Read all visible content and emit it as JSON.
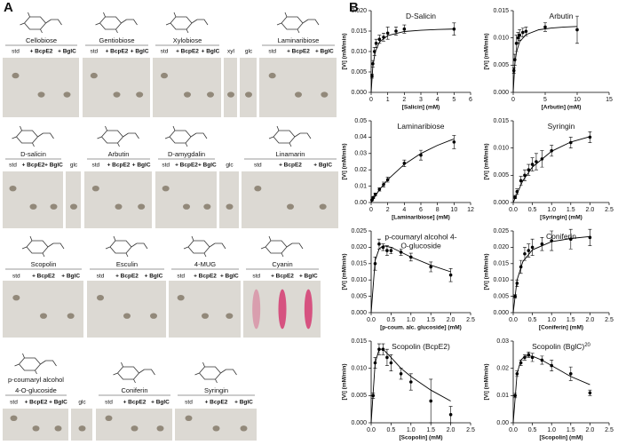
{
  "panels": [
    "A",
    "B"
  ],
  "panel_a": {
    "rows": [
      [
        {
          "name": "Cellobiose",
          "lanes": [
            "std",
            "+ BcpE2",
            "+ BglC"
          ]
        },
        {
          "name": "Gentiobiose",
          "lanes": [
            "std",
            "+ BcpE2",
            "+ BglC"
          ]
        },
        {
          "name": "Xylobiose",
          "lanes": [
            "std",
            "+ BcpE2",
            "+ BglC"
          ]
        },
        {
          "lanes": [
            "xyl"
          ]
        },
        {
          "lanes": [
            "glc"
          ]
        },
        {
          "name": "Laminaribiose",
          "lanes": [
            "std",
            "+ BcpE2",
            "+ BglC"
          ]
        }
      ],
      [
        {
          "name": "D-salicin",
          "lanes": [
            "std",
            "+ BcpE2",
            "+ BglC"
          ]
        },
        {
          "lanes": [
            "glc"
          ]
        },
        {
          "name": "Arbutin",
          "lanes": [
            "std",
            "+ BcpE2",
            "+ BglC"
          ]
        },
        {
          "name": "D-amygdalin",
          "lanes": [
            "std",
            "+ BcpE2",
            "+ BglC"
          ]
        },
        {
          "lanes": [
            "glc"
          ]
        },
        {
          "name": "Linamarin",
          "lanes": [
            "std",
            "+ BcpE2",
            "+ BglC"
          ]
        }
      ],
      [
        {
          "name": "Scopolin",
          "lanes": [
            "std",
            "+ BcpE2",
            "+ BglC"
          ]
        },
        {
          "name": "Esculin",
          "lanes": [
            "std",
            "+ BcpE2",
            "+ BglC"
          ]
        },
        {
          "name": "4-MUG",
          "lanes": [
            "std",
            "+ BcpE2",
            "+ BglC"
          ]
        },
        {
          "name": "Cyanin",
          "lanes": [
            "std",
            "+ BcpE2",
            "+ BglC"
          ]
        }
      ],
      [
        {
          "name": [
            "p-coumaryl alcohol",
            "4-O-glucoside"
          ],
          "lanes": [
            "std",
            "+ BcpE2",
            "+ BglC"
          ]
        },
        {
          "lanes": [
            "glc"
          ]
        },
        {
          "name": "Coniferin",
          "lanes": [
            "std",
            "+ BcpE2",
            "+ BglC"
          ]
        },
        {
          "name": "Syringin",
          "lanes": [
            "std",
            "+ BcpE2",
            "+ BglC"
          ]
        }
      ]
    ]
  },
  "chart_data": [
    {
      "type": "scatter",
      "title": "D-Salicin",
      "xlabel": "[Salicin] (mM)",
      "ylabel": "[Vi] (mM/min)",
      "xlim": [
        0,
        6
      ],
      "xticks": [
        0,
        1,
        2,
        3,
        4,
        5,
        6
      ],
      "ylim": [
        0,
        0.02
      ],
      "yticks": [
        {
          "value": 0,
          "label": "0.000"
        },
        0.005,
        {
          "value": 0.01,
          "label": "0.010"
        },
        0.015,
        {
          "value": 0.02,
          "label": "0.020"
        }
      ],
      "x": [
        0.05,
        0.1,
        0.2,
        0.3,
        0.5,
        0.75,
        1,
        1.5,
        2,
        5
      ],
      "values": [
        0.004,
        0.007,
        0.01,
        0.012,
        0.013,
        0.0135,
        0.0145,
        0.015,
        0.0155,
        0.0155
      ],
      "errors": [
        0.0005,
        0.0008,
        0.001,
        0.001,
        0.001,
        0.001,
        0.0015,
        0.001,
        0.001,
        0.0015
      ],
      "fit": {
        "x": [
          0,
          0.1,
          0.25,
          0.5,
          1,
          2,
          3,
          4,
          5
        ],
        "values": [
          0,
          0.0064,
          0.01,
          0.0123,
          0.0139,
          0.0149,
          0.0152,
          0.0154,
          0.0155
        ]
      }
    },
    {
      "type": "scatter",
      "title": "Arbutin",
      "xlabel": "[Arbutin] (mM)",
      "ylabel": "[Vi] (mM/min)",
      "xlim": [
        0,
        15
      ],
      "xticks": [
        0,
        5,
        10,
        15
      ],
      "ylim": [
        0,
        0.015
      ],
      "yticks": [
        {
          "value": 0,
          "label": "0.000"
        },
        0.005,
        {
          "value": 0.01,
          "label": "0.010"
        },
        0.015
      ],
      "x": [
        0.1,
        0.25,
        0.5,
        0.75,
        1,
        1.5,
        2,
        5,
        10
      ],
      "values": [
        0.004,
        0.006,
        0.009,
        0.01,
        0.0105,
        0.011,
        0.0112,
        0.012,
        0.0115
      ],
      "errors": [
        0.0005,
        0.001,
        0.0015,
        0.001,
        0.001,
        0.0008,
        0.0008,
        0.0008,
        0.0025
      ],
      "fit": {
        "x": [
          0,
          0.25,
          0.5,
          1,
          2,
          4,
          6,
          8,
          10
        ],
        "values": [
          0,
          0.0052,
          0.0074,
          0.0093,
          0.0106,
          0.0115,
          0.0118,
          0.012,
          0.0121
        ]
      }
    },
    {
      "type": "scatter",
      "title": "Laminaribiose",
      "xlabel": "[Laminaribiose] (mM)",
      "ylabel": "[Vi] (mM/min)",
      "xlim": [
        0,
        12
      ],
      "xticks": [
        0,
        2,
        4,
        6,
        8,
        10,
        12
      ],
      "ylim": [
        0,
        0.05
      ],
      "yticks": [
        {
          "value": 0,
          "label": "0.00"
        },
        0.01,
        0.02,
        0.03,
        0.04,
        0.05
      ],
      "x": [
        0.1,
        0.25,
        0.5,
        1,
        1.5,
        2,
        4,
        6,
        10
      ],
      "values": [
        0.0015,
        0.003,
        0.005,
        0.008,
        0.011,
        0.014,
        0.024,
        0.029,
        0.037
      ],
      "errors": [
        0.0003,
        0.0005,
        0.0008,
        0.001,
        0.0015,
        0.0015,
        0.002,
        0.003,
        0.004
      ],
      "fit": {
        "x": [
          0,
          1,
          2,
          4,
          6,
          8,
          10
        ],
        "values": [
          0,
          0.0078,
          0.014,
          0.0233,
          0.03,
          0.035,
          0.0389
        ]
      }
    },
    {
      "type": "scatter",
      "title": "Syringin",
      "xlabel": "[Syringin] (mM)",
      "ylabel": "[Vi] (mM/min)",
      "xlim": [
        0,
        2.5
      ],
      "xticks": [
        {
          "value": 0,
          "label": "0.0"
        },
        0.5,
        {
          "value": 1,
          "label": "1.0"
        },
        1.5,
        {
          "value": 2,
          "label": "2.0"
        },
        2.5
      ],
      "ylim": [
        0,
        0.015
      ],
      "yticks": [
        {
          "value": 0,
          "label": "0.000"
        },
        0.005,
        {
          "value": 0.01,
          "label": "0.010"
        },
        0.015
      ],
      "x": [
        0.05,
        0.1,
        0.2,
        0.3,
        0.4,
        0.5,
        0.6,
        0.75,
        1,
        1.5,
        2
      ],
      "values": [
        0.001,
        0.002,
        0.004,
        0.005,
        0.006,
        0.007,
        0.0075,
        0.008,
        0.0095,
        0.011,
        0.012
      ],
      "errors": [
        0.0003,
        0.0005,
        0.0008,
        0.001,
        0.001,
        0.0012,
        0.0015,
        0.0015,
        0.001,
        0.001,
        0.001
      ],
      "fit": {
        "x": [
          0,
          0.25,
          0.5,
          1,
          1.5,
          2
        ],
        "values": [
          0,
          0.004,
          0.0065,
          0.0094,
          0.0111,
          0.0121
        ]
      }
    },
    {
      "type": "scatter",
      "title": [
        "p-coumaryl alcohol 4-",
        "O-glucoside"
      ],
      "xlabel": "[p-coum. alc. glucoside] (mM)",
      "ylabel": "[Vi] (mM/min)",
      "xlim": [
        0,
        2.5
      ],
      "xticks": [
        {
          "value": 0,
          "label": "0.0"
        },
        0.5,
        {
          "value": 1,
          "label": "1.0"
        },
        1.5,
        {
          "value": 2,
          "label": "2.0"
        },
        2.5
      ],
      "ylim": [
        0,
        0.025
      ],
      "yticks": [
        {
          "value": 0,
          "label": "0.000"
        },
        0.005,
        {
          "value": 0.01,
          "label": "0.010"
        },
        0.015,
        {
          "value": 0.02,
          "label": "0.020"
        },
        0.025
      ],
      "x": [
        0.1,
        0.2,
        0.3,
        0.4,
        0.5,
        0.75,
        1,
        1.5,
        2
      ],
      "values": [
        0.015,
        0.021,
        0.02,
        0.019,
        0.019,
        0.0185,
        0.017,
        0.014,
        0.0115
      ],
      "errors": [
        0.002,
        0.0015,
        0.001,
        0.0015,
        0.001,
        0.001,
        0.0012,
        0.0015,
        0.002
      ],
      "fit": {
        "x": [
          0,
          0.1,
          0.2,
          0.3,
          0.5,
          0.75,
          1,
          1.5,
          2
        ],
        "values": [
          0,
          0.016,
          0.0195,
          0.0205,
          0.02,
          0.0185,
          0.017,
          0.0145,
          0.0125
        ]
      }
    },
    {
      "type": "scatter",
      "title": "Coniferin",
      "xlabel": "[Coniferin] (mM)",
      "ylabel": "[Vi] (mM/min)",
      "xlim": [
        0,
        2.5
      ],
      "xticks": [
        {
          "value": 0,
          "label": "0.0"
        },
        0.5,
        {
          "value": 1,
          "label": "1.0"
        },
        1.5,
        {
          "value": 2,
          "label": "2.0"
        },
        2.5
      ],
      "ylim": [
        0,
        0.025
      ],
      "yticks": [
        {
          "value": 0,
          "label": "0.000"
        },
        0.005,
        {
          "value": 0.01,
          "label": "0.010"
        },
        0.015,
        {
          "value": 0.02,
          "label": "0.020"
        },
        0.025
      ],
      "x": [
        0.05,
        0.1,
        0.2,
        0.3,
        0.4,
        0.5,
        0.75,
        1,
        1.5,
        2
      ],
      "values": [
        0.005,
        0.009,
        0.014,
        0.018,
        0.019,
        0.02,
        0.021,
        0.022,
        0.0225,
        0.023
      ],
      "errors": [
        0.0005,
        0.001,
        0.002,
        0.002,
        0.002,
        0.0025,
        0.002,
        0.003,
        0.003,
        0.0025
      ],
      "fit": {
        "x": [
          0,
          0.1,
          0.25,
          0.5,
          1,
          1.5,
          2
        ],
        "values": [
          0,
          0.01,
          0.0156,
          0.0192,
          0.0217,
          0.0227,
          0.0233
        ]
      }
    },
    {
      "type": "scatter",
      "title": "Scopolin (BcpE2)",
      "xlabel": "[Scopolin] (mM)",
      "ylabel": "[Vi] (mM/min)",
      "xlim": [
        0,
        2.5
      ],
      "xticks": [
        {
          "value": 0,
          "label": "0.0"
        },
        0.5,
        {
          "value": 1,
          "label": "1.0"
        },
        1.5,
        {
          "value": 2,
          "label": "2.0"
        },
        2.5
      ],
      "ylim": [
        0,
        0.015
      ],
      "yticks": [
        {
          "value": 0,
          "label": "0.000"
        },
        0.005,
        {
          "value": 0.01,
          "label": "0.010"
        },
        0.015
      ],
      "x": [
        0.05,
        0.1,
        0.2,
        0.3,
        0.4,
        0.5,
        0.75,
        1,
        1.5,
        2
      ],
      "values": [
        0.005,
        0.011,
        0.0135,
        0.0135,
        0.012,
        0.011,
        0.009,
        0.0075,
        0.004,
        0.0015
      ],
      "errors": [
        0.0005,
        0.001,
        0.001,
        0.001,
        0.0015,
        0.0015,
        0.001,
        0.0015,
        0.004,
        0.0015
      ],
      "fit": {
        "x": [
          0,
          0.1,
          0.2,
          0.3,
          0.5,
          0.75,
          1,
          1.5,
          2
        ],
        "values": [
          0,
          0.011,
          0.0135,
          0.0135,
          0.012,
          0.01,
          0.0085,
          0.006,
          0.004
        ]
      }
    },
    {
      "type": "scatter",
      "title": "Scopolin (BglC)",
      "title_note": "20",
      "xlabel": "[Scopolin] (mM)",
      "ylabel": "[Vi] (mM/min)",
      "xlim": [
        0,
        2.5
      ],
      "xticks": [
        {
          "value": 0,
          "label": "0.0"
        },
        0.5,
        {
          "value": 1,
          "label": "1.0"
        },
        1.5,
        {
          "value": 2,
          "label": "2.0"
        },
        2.5
      ],
      "ylim": [
        0,
        0.03
      ],
      "yticks": [
        {
          "value": 0,
          "label": "0.00"
        },
        0.01,
        0.02,
        0.03
      ],
      "x": [
        0.05,
        0.1,
        0.2,
        0.3,
        0.4,
        0.5,
        0.75,
        1,
        1.5,
        2
      ],
      "values": [
        0.01,
        0.018,
        0.022,
        0.024,
        0.025,
        0.024,
        0.023,
        0.021,
        0.018,
        0.011
      ],
      "errors": [
        0.0008,
        0.001,
        0.001,
        0.001,
        0.001,
        0.0015,
        0.0015,
        0.002,
        0.0025,
        0.001
      ],
      "fit": {
        "x": [
          0,
          0.1,
          0.2,
          0.3,
          0.5,
          0.75,
          1,
          1.5,
          2
        ],
        "values": [
          0,
          0.018,
          0.023,
          0.0245,
          0.0245,
          0.023,
          0.021,
          0.017,
          0.014
        ]
      }
    }
  ]
}
